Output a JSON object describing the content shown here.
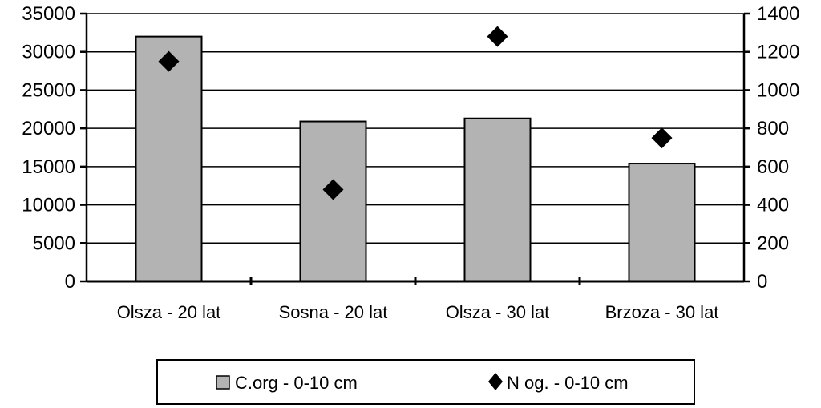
{
  "chart_data": {
    "type": "bar",
    "categories": [
      "Olsza - 20 lat",
      "Sosna - 20 lat",
      "Olsza - 30 lat",
      "Brzoza - 30 lat"
    ],
    "series": [
      {
        "name": "C.org - 0-10 cm",
        "type": "bar",
        "axis": "left",
        "values": [
          32000,
          20900,
          21300,
          15400
        ],
        "color": "#b3b3b3"
      },
      {
        "name": "N og. - 0-10 cm",
        "type": "scatter",
        "marker": "diamond",
        "axis": "right",
        "values": [
          1150,
          480,
          1280,
          750
        ],
        "color": "#000000"
      }
    ],
    "y_left": {
      "lim": [
        0,
        35000
      ],
      "ticks": [
        "0",
        "5000",
        "10000",
        "15000",
        "20000",
        "25000",
        "30000",
        "35000"
      ]
    },
    "y_right": {
      "lim": [
        0,
        1400
      ],
      "ticks": [
        "0",
        "200",
        "400",
        "600",
        "800",
        "1000",
        "1200",
        "1400"
      ]
    },
    "grid": true,
    "legend": "bottom"
  }
}
